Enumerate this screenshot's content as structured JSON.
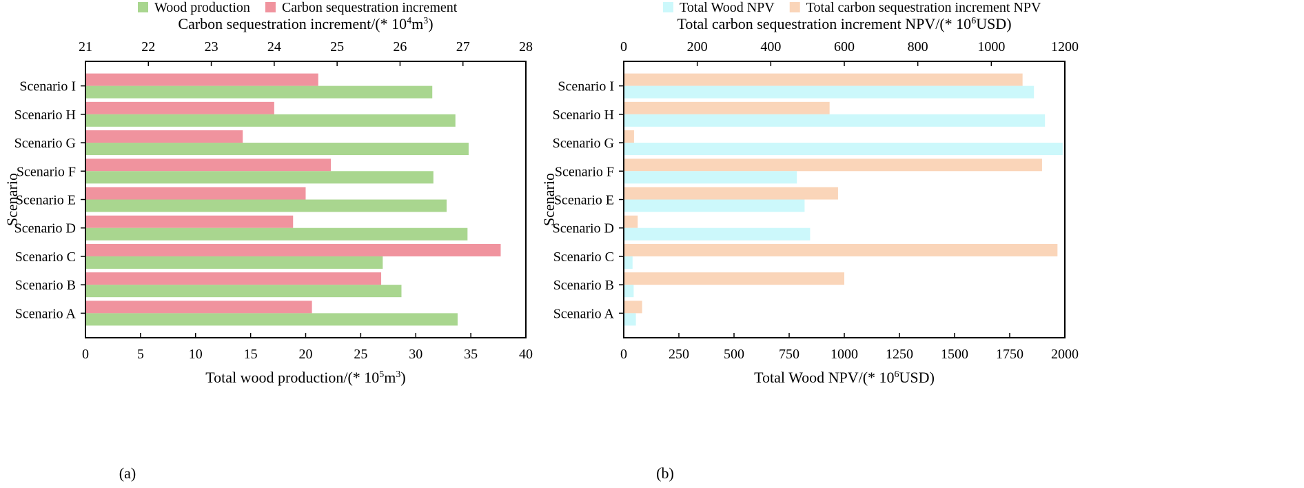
{
  "chart_data": [
    {
      "panel_label": "(a)",
      "type": "bar",
      "orientation": "horizontal",
      "ylabel": "Scenario",
      "categories": [
        "Scenario A",
        "Scenario B",
        "Scenario C",
        "Scenario D",
        "Scenario E",
        "Scenario F",
        "Scenario G",
        "Scenario H",
        "Scenario I"
      ],
      "bottom_axis": {
        "title_prefix": "Total wood production/(* 10",
        "title_sup": "5",
        "title_suffix": "m",
        "title_sup2": "3",
        "title_end": ")",
        "range": [
          0,
          40
        ],
        "ticks": [
          0,
          5,
          10,
          15,
          20,
          25,
          30,
          35,
          40
        ]
      },
      "top_axis": {
        "title_prefix": "Carbon sequestration increment/(* 10",
        "title_sup": "4",
        "title_suffix": "m",
        "title_sup2": "3",
        "title_end": ")",
        "range": [
          21,
          28
        ],
        "ticks": [
          21,
          22,
          23,
          24,
          25,
          26,
          27,
          28
        ]
      },
      "series": [
        {
          "name": "Wood production",
          "axis": "bottom",
          "color": "#a9d68f",
          "values": [
            33.8,
            28.7,
            27.0,
            34.7,
            32.8,
            31.6,
            34.8,
            33.6,
            31.5
          ]
        },
        {
          "name": "Carbon sequestration increment",
          "axis": "top",
          "color": "#f0939e",
          "values": [
            24.6,
            25.7,
            27.6,
            24.3,
            24.5,
            24.9,
            23.5,
            24.0,
            24.7
          ]
        }
      ]
    },
    {
      "panel_label": "(b)",
      "type": "bar",
      "orientation": "horizontal",
      "ylabel": "Scenario",
      "categories": [
        "Scenario A",
        "Scenario B",
        "Scenario C",
        "Scenario D",
        "Scenario E",
        "Scenario F",
        "Scenario G",
        "Scenario H",
        "Scenario I"
      ],
      "bottom_axis": {
        "title_prefix": "Total Wood NPV/(* 10",
        "title_sup": "6",
        "title_suffix": "USD",
        "title_sup2": "",
        "title_end": ")",
        "range": [
          0,
          2000
        ],
        "ticks": [
          0,
          250,
          500,
          750,
          1000,
          1250,
          1500,
          1750,
          2000
        ]
      },
      "top_axis": {
        "title_prefix": "Total carbon sequestration increment NPV/(* 10",
        "title_sup": "6",
        "title_suffix": "USD",
        "title_sup2": "",
        "title_end": ")",
        "range": [
          0,
          1200
        ],
        "ticks": [
          0,
          200,
          400,
          600,
          800,
          1000,
          1200
        ]
      },
      "series": [
        {
          "name": "Total Wood NPV",
          "axis": "bottom",
          "color": "#ccf8fb",
          "values": [
            55,
            45,
            40,
            845,
            820,
            785,
            1990,
            1910,
            1860
          ]
        },
        {
          "name": "Total carbon sequestration increment NPV",
          "axis": "top",
          "color": "#fad5b9",
          "values": [
            50,
            600,
            1180,
            38,
            583,
            1138,
            28,
            560,
            1085
          ]
        }
      ]
    }
  ]
}
